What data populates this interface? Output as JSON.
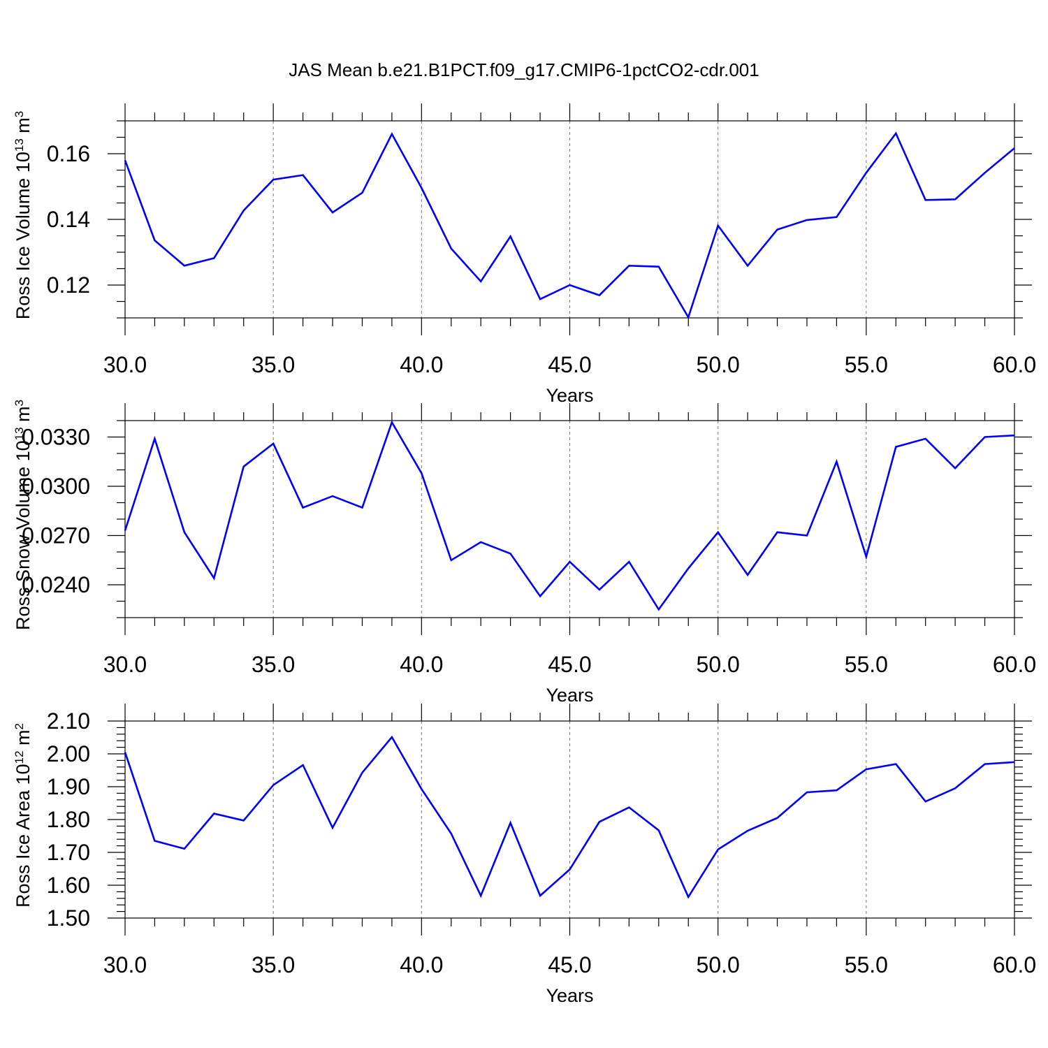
{
  "title": "JAS Mean b.e21.B1PCT.f09_g17.CMIP6-1pctCO2-cdr.001",
  "chart_data": [
    {
      "type": "line",
      "ylabel": "Ross Ice Volume 10",
      "ylabel_exp": "13",
      "ylabel_unit": " m",
      "ylabel_unit_exp": "3",
      "xlabel": "Years",
      "xlim": [
        30,
        60
      ],
      "ylim": [
        0.11,
        0.17
      ],
      "yticks": [
        0.12,
        0.14,
        0.16
      ],
      "ytick_labels": [
        "0.12",
        "0.14",
        "0.16"
      ],
      "yminor_step": 0.005,
      "xticks": [
        30,
        35,
        40,
        45,
        50,
        55,
        60
      ],
      "xtick_labels": [
        "30.0",
        "35.0",
        "40.0",
        "45.0",
        "50.0",
        "55.0",
        "60.0"
      ],
      "series": [
        {
          "color": "#0000ff",
          "x": [
            30,
            31,
            32,
            33,
            34,
            35,
            36,
            37,
            38,
            39,
            40,
            41,
            42,
            43,
            44,
            45,
            46,
            47,
            48,
            49,
            50,
            51,
            52,
            53,
            54,
            55,
            56,
            57,
            58,
            59,
            60
          ],
          "y": [
            0.158,
            0.1336,
            0.1259,
            0.1282,
            0.1427,
            0.1521,
            0.1535,
            0.1421,
            0.1481,
            0.166,
            0.1496,
            0.1311,
            0.1211,
            0.1348,
            0.1157,
            0.12,
            0.1169,
            0.1259,
            0.1256,
            0.1102,
            0.1381,
            0.1259,
            0.1369,
            0.1398,
            0.1407,
            0.1542,
            0.1662,
            0.1459,
            0.1461,
            0.1542,
            0.1617
          ]
        }
      ]
    },
    {
      "type": "line",
      "ylabel": "Ross Snow Volume 10",
      "ylabel_exp": "13",
      "ylabel_unit": " m",
      "ylabel_unit_exp": "3",
      "xlabel": "Years",
      "xlim": [
        30,
        60
      ],
      "ylim": [
        0.022,
        0.034
      ],
      "yticks": [
        0.024,
        0.027,
        0.03,
        0.033
      ],
      "ytick_labels": [
        "0.0240",
        "0.0270",
        "0.0300",
        "0.0330"
      ],
      "yminor_step": 0.001,
      "xticks": [
        30,
        35,
        40,
        45,
        50,
        55,
        60
      ],
      "xtick_labels": [
        "30.0",
        "35.0",
        "40.0",
        "45.0",
        "50.0",
        "55.0",
        "60.0"
      ],
      "series": [
        {
          "color": "#0000ff",
          "x": [
            30,
            31,
            32,
            33,
            34,
            35,
            36,
            37,
            38,
            39,
            40,
            41,
            42,
            43,
            44,
            45,
            46,
            47,
            48,
            49,
            50,
            51,
            52,
            53,
            54,
            55,
            56,
            57,
            58,
            59,
            60
          ],
          "y": [
            0.0273,
            0.0329,
            0.0272,
            0.0244,
            0.0312,
            0.0326,
            0.0287,
            0.0294,
            0.0287,
            0.0339,
            0.0308,
            0.0255,
            0.0266,
            0.0259,
            0.0233,
            0.0254,
            0.0237,
            0.0254,
            0.0225,
            0.025,
            0.0272,
            0.0246,
            0.0272,
            0.027,
            0.0315,
            0.0257,
            0.0324,
            0.0329,
            0.0311,
            0.033,
            0.0331
          ]
        }
      ]
    },
    {
      "type": "line",
      "ylabel": "Ross Ice Area 10",
      "ylabel_exp": "12",
      "ylabel_unit": " m",
      "ylabel_unit_exp": "2",
      "xlabel": "Years",
      "xlim": [
        30,
        60
      ],
      "ylim": [
        1.5,
        2.1
      ],
      "yticks": [
        1.5,
        1.6,
        1.7,
        1.8,
        1.9,
        2.0,
        2.1
      ],
      "ytick_labels": [
        "1.50",
        "1.60",
        "1.70",
        "1.80",
        "1.90",
        "2.00",
        "2.10"
      ],
      "yminor_step": 0.02,
      "xticks": [
        30,
        35,
        40,
        45,
        50,
        55,
        60
      ],
      "xtick_labels": [
        "30.0",
        "35.0",
        "40.0",
        "45.0",
        "50.0",
        "55.0",
        "60.0"
      ],
      "series": [
        {
          "color": "#0000ff",
          "x": [
            30,
            31,
            32,
            33,
            34,
            35,
            36,
            37,
            38,
            39,
            40,
            41,
            42,
            43,
            44,
            45,
            46,
            47,
            48,
            49,
            50,
            51,
            52,
            53,
            54,
            55,
            56,
            57,
            58,
            59,
            60
          ],
          "y": [
            2.005,
            1.735,
            1.711,
            1.818,
            1.797,
            1.905,
            1.966,
            1.775,
            1.943,
            2.051,
            1.893,
            1.757,
            1.568,
            1.79,
            1.568,
            1.648,
            1.793,
            1.837,
            1.767,
            1.564,
            1.709,
            1.766,
            1.805,
            1.883,
            1.889,
            1.953,
            1.969,
            1.855,
            1.895,
            1.969,
            1.975
          ]
        }
      ]
    }
  ]
}
